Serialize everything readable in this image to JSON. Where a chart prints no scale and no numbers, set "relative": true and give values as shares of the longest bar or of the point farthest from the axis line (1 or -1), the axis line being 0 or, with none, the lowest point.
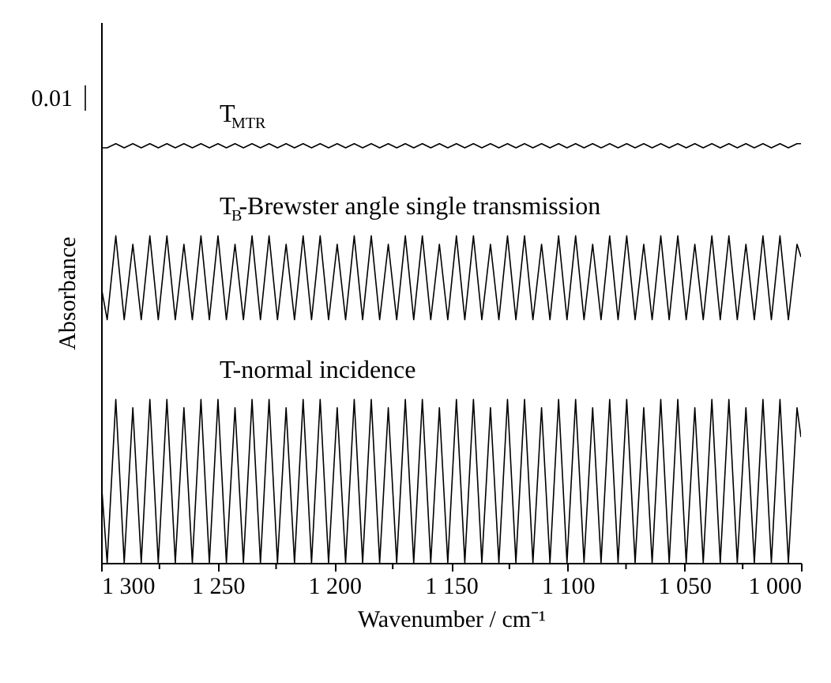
{
  "chart_data": {
    "type": "line",
    "relative": true,
    "xlabel": "Wavenumber / cm⁻¹",
    "ylabel": "Absorbance",
    "annotations": [
      "0.01"
    ],
    "xlim": [
      1300,
      1000
    ],
    "xticks": [
      {
        "value": 1300,
        "label": "1 300"
      },
      {
        "value": 1275,
        "label": null
      },
      {
        "value": 1250,
        "label": "1 250"
      },
      {
        "value": 1225,
        "label": null
      },
      {
        "value": 1200,
        "label": "1 200"
      },
      {
        "value": 1175,
        "label": null
      },
      {
        "value": 1150,
        "label": "1 150"
      },
      {
        "value": 1125,
        "label": null
      },
      {
        "value": 1100,
        "label": "1 100"
      },
      {
        "value": 1075,
        "label": null
      },
      {
        "value": 1050,
        "label": "1 050"
      },
      {
        "value": 1025,
        "label": null
      },
      {
        "value": 1000,
        "label": "1 000"
      }
    ],
    "x": [
      1300,
      1297.4,
      1293.7,
      1290.1,
      1286.4,
      1282.8,
      1279.1,
      1275.5,
      1271.8,
      1268.2,
      1264.5,
      1260.9,
      1257.2,
      1253.6,
      1249.9,
      1246.3,
      1242.6,
      1239.0,
      1235.3,
      1231.7,
      1228.0,
      1224.4,
      1220.7,
      1217.1,
      1213.4,
      1209.8,
      1206.1,
      1202.5,
      1198.8,
      1195.2,
      1191.5,
      1187.9,
      1184.2,
      1180.6,
      1176.9,
      1173.3,
      1169.6,
      1166.0,
      1162.3,
      1158.7,
      1155.0,
      1151.4,
      1147.7,
      1144.1,
      1140.4,
      1136.8,
      1133.1,
      1129.5,
      1125.8,
      1122.2,
      1118.5,
      1114.9,
      1111.2,
      1107.6,
      1103.9,
      1100.3,
      1096.6,
      1093.0,
      1089.3,
      1085.7,
      1082.0,
      1078.4,
      1074.7,
      1071.1,
      1067.4,
      1063.8,
      1060.1,
      1056.5,
      1052.8,
      1049.2,
      1045.5,
      1041.9,
      1038.2,
      1034.6,
      1030.9,
      1027.3,
      1023.6,
      1020.0,
      1016.3,
      1012.7,
      1009.0,
      1005.4,
      1001.7,
      1000
    ],
    "series": [
      {
        "name": "T$_{MTR}$",
        "color": "#000000",
        "values": [
          0.99,
          0.99,
          1,
          0.99,
          1,
          0.99,
          1,
          0.99,
          1,
          0.99,
          1,
          0.99,
          1,
          0.99,
          1,
          0.99,
          1,
          0.99,
          1,
          0.99,
          1,
          0.99,
          1,
          0.99,
          1,
          0.99,
          1,
          0.99,
          1,
          0.99,
          1,
          0.99,
          1,
          0.99,
          1,
          0.99,
          1,
          0.99,
          1,
          0.99,
          1,
          0.99,
          1,
          0.99,
          1,
          0.99,
          1,
          0.99,
          1,
          0.99,
          1,
          0.99,
          1,
          0.99,
          1,
          0.99,
          1,
          0.99,
          1,
          0.99,
          1,
          0.99,
          1,
          0.99,
          1,
          0.99,
          1,
          0.99,
          1,
          0.99,
          1,
          0.99,
          1,
          0.99,
          1,
          0.99,
          1,
          0.99,
          1,
          0.99,
          1,
          0.99,
          1,
          1
        ]
      },
      {
        "name": "T$_{B}$-Brewster angle single transmission",
        "color": "#000000",
        "values": [
          0.66,
          0.58,
          0.78,
          0.58,
          0.76,
          0.58,
          0.78,
          0.58,
          0.78,
          0.58,
          0.76,
          0.58,
          0.78,
          0.58,
          0.78,
          0.58,
          0.76,
          0.58,
          0.78,
          0.58,
          0.78,
          0.58,
          0.76,
          0.58,
          0.78,
          0.58,
          0.78,
          0.58,
          0.76,
          0.58,
          0.78,
          0.58,
          0.78,
          0.58,
          0.76,
          0.58,
          0.78,
          0.58,
          0.78,
          0.58,
          0.76,
          0.58,
          0.78,
          0.58,
          0.78,
          0.58,
          0.76,
          0.58,
          0.78,
          0.58,
          0.78,
          0.58,
          0.76,
          0.58,
          0.78,
          0.58,
          0.78,
          0.58,
          0.76,
          0.58,
          0.78,
          0.58,
          0.78,
          0.58,
          0.76,
          0.58,
          0.78,
          0.58,
          0.78,
          0.58,
          0.76,
          0.58,
          0.78,
          0.58,
          0.78,
          0.58,
          0.76,
          0.58,
          0.78,
          0.58,
          0.78,
          0.58,
          0.76,
          0.73
        ]
      },
      {
        "name": "T-normal incidence",
        "color": "#000000",
        "values": [
          0.2,
          0,
          0.39,
          0,
          0.37,
          0,
          0.39,
          0,
          0.39,
          0,
          0.37,
          0,
          0.39,
          0,
          0.39,
          0,
          0.37,
          0,
          0.39,
          0,
          0.39,
          0,
          0.37,
          0,
          0.39,
          0,
          0.39,
          0,
          0.37,
          0,
          0.39,
          0,
          0.39,
          0,
          0.37,
          0,
          0.39,
          0,
          0.39,
          0,
          0.37,
          0,
          0.39,
          0,
          0.39,
          0,
          0.37,
          0,
          0.39,
          0,
          0.39,
          0,
          0.37,
          0,
          0.39,
          0,
          0.39,
          0,
          0.37,
          0,
          0.39,
          0,
          0.39,
          0,
          0.37,
          0,
          0.39,
          0,
          0.39,
          0,
          0.37,
          0,
          0.39,
          0,
          0.39,
          0,
          0.37,
          0,
          0.39,
          0,
          0.39,
          0,
          0.37,
          0.3
        ]
      }
    ]
  }
}
